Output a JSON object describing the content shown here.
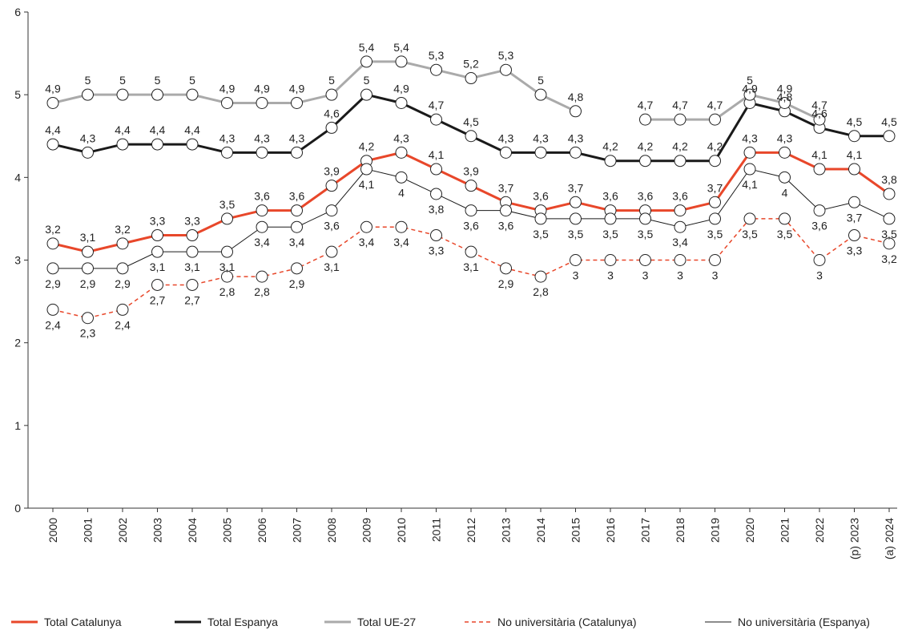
{
  "chart_data": {
    "type": "line",
    "categories": [
      "2000",
      "2001",
      "2002",
      "2003",
      "2004",
      "2005",
      "2006",
      "2007",
      "2008",
      "2009",
      "2010",
      "2011",
      "2012",
      "2013",
      "2014",
      "2015",
      "2016",
      "2017",
      "2018",
      "2019",
      "2020",
      "2021",
      "2022",
      "(p) 2023",
      "(a) 2024"
    ],
    "ylim": [
      0,
      6
    ],
    "yticks": [
      0,
      1,
      2,
      3,
      4,
      5,
      6
    ],
    "grid": false,
    "series": [
      {
        "name": "Total Catalunya",
        "color": "#e8472a",
        "line_width": 3,
        "line_style": "solid",
        "label_position": "above",
        "values": [
          3.2,
          3.1,
          3.2,
          3.3,
          3.3,
          3.5,
          3.6,
          3.6,
          3.9,
          4.2,
          4.3,
          4.1,
          3.9,
          3.7,
          3.6,
          3.7,
          3.6,
          3.6,
          3.6,
          3.7,
          4.3,
          4.3,
          4.1,
          4.1,
          3.8
        ],
        "value_labels": [
          "3,2",
          "3,1",
          "3,2",
          "3,3",
          "3,3",
          "3,5",
          "3,6",
          "3,6",
          "3,9",
          "4,2",
          "4,3",
          "4,1",
          "3,9",
          "3,7",
          "3,6",
          "3,7",
          "3,6",
          "3,6",
          "3,6",
          "3,7",
          "4,3",
          "4,3",
          "4,1",
          "4,1",
          "3,8"
        ]
      },
      {
        "name": "Total Espanya",
        "color": "#1a1a1a",
        "line_width": 3,
        "line_style": "solid",
        "label_position": "above",
        "values": [
          4.4,
          4.3,
          4.4,
          4.4,
          4.4,
          4.3,
          4.3,
          4.3,
          4.6,
          5,
          4.9,
          4.7,
          4.5,
          4.3,
          4.3,
          4.3,
          4.2,
          4.2,
          4.2,
          4.2,
          4.9,
          4.8,
          4.6,
          4.5,
          4.5
        ],
        "value_labels": [
          "4,4",
          "4,3",
          "4,4",
          "4,4",
          "4,4",
          "4,3",
          "4,3",
          "4,3",
          "4,6",
          "5",
          "4,9",
          "4,7",
          "4,5",
          "4,3",
          "4,3",
          "4,3",
          "4,2",
          "4,2",
          "4,2",
          "4,2",
          "4,9",
          "4,8",
          "4,6",
          "4,5",
          "4,5"
        ]
      },
      {
        "name": "Total UE-27",
        "color": "#aaaaaa",
        "line_width": 3,
        "line_style": "solid",
        "label_position": "above",
        "values": [
          4.9,
          5,
          5,
          5,
          5,
          4.9,
          4.9,
          4.9,
          5,
          5.4,
          5.4,
          5.3,
          5.2,
          5.3,
          5,
          4.8,
          null,
          4.7,
          4.7,
          4.7,
          5,
          4.9,
          4.7,
          null,
          null
        ],
        "value_labels": [
          "4,9",
          "5",
          "5",
          "5",
          "5",
          "4,9",
          "4,9",
          "4,9",
          "5",
          "5,4",
          "5,4",
          "5,3",
          "5,2",
          "5,3",
          "5",
          "4,8",
          null,
          "4,7",
          "4,7",
          "4,7",
          "5",
          "4,9",
          "4,7",
          null,
          null
        ]
      },
      {
        "name": "No universitària (Catalunya)",
        "color": "#e8472a",
        "line_width": 1.5,
        "line_style": "dashed",
        "label_position": "below",
        "values": [
          2.4,
          2.3,
          2.4,
          2.7,
          2.7,
          2.8,
          2.8,
          2.9,
          3.1,
          3.4,
          3.4,
          3.3,
          3.1,
          2.9,
          2.8,
          3,
          3,
          3,
          3,
          3,
          3.5,
          3.5,
          3,
          3.3,
          3.2
        ],
        "value_labels": [
          "2,4",
          "2,3",
          "2,4",
          "2,7",
          "2,7",
          "2,8",
          "2,8",
          "2,9",
          "3,1",
          "3,4",
          "3,4",
          "3,3",
          "3,1",
          "2,9",
          "2,8",
          "3",
          "3",
          "3",
          "3",
          "3",
          "3,5",
          "3,5",
          "3",
          "3,3",
          "3,2"
        ]
      },
      {
        "name": "No universitària (Espanya)",
        "color": "#1a1a1a",
        "line_width": 1,
        "line_style": "solid",
        "label_position": "below",
        "values": [
          2.9,
          2.9,
          2.9,
          3.1,
          3.1,
          3.1,
          3.4,
          3.4,
          3.6,
          4.1,
          4,
          3.8,
          3.6,
          3.6,
          3.5,
          3.5,
          3.5,
          3.5,
          3.4,
          3.5,
          4.1,
          4,
          3.6,
          3.7,
          3.5
        ],
        "value_labels": [
          "2,9",
          "2,9",
          "2,9",
          "3,1",
          "3,1",
          "3,1",
          "3,4",
          "3,4",
          "3,6",
          "4,1",
          "4",
          "3,8",
          "3,6",
          "3,6",
          "3,5",
          "3,5",
          "3,5",
          "3,5",
          "3,4",
          "3,5",
          "4,1",
          "4",
          "3,6",
          "3,7",
          "3,5"
        ]
      }
    ]
  }
}
